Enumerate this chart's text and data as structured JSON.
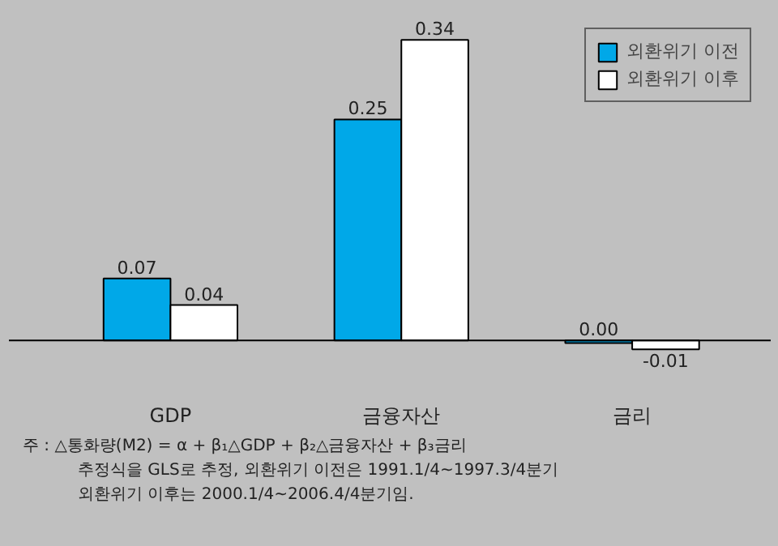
{
  "chart_data": {
    "type": "bar",
    "categories": [
      "GDP",
      "금융자산",
      "금리"
    ],
    "series": [
      {
        "name": "외환위기 이전",
        "color": "#00a8e8",
        "values": [
          0.07,
          0.25,
          -0.003
        ],
        "value_labels": [
          "0.07",
          "0.25",
          "0.00"
        ]
      },
      {
        "name": "외환위기 이후",
        "color": "#ffffff",
        "values": [
          0.04,
          0.34,
          -0.01
        ],
        "value_labels": [
          "0.04",
          "0.34",
          "-0.01"
        ]
      }
    ],
    "legend": "top right",
    "grid": false,
    "annotations": [
      "주 : △통화량(M2) = α + β₁△GDP + β₂△금융자산 + β₃금리",
      "추정식을 GLS로 추정, 외환위기 이전은 1991.1/4~1997.3/4분기",
      "외환위기 이후는 2000.1/4~2006.4/4분기임."
    ]
  }
}
